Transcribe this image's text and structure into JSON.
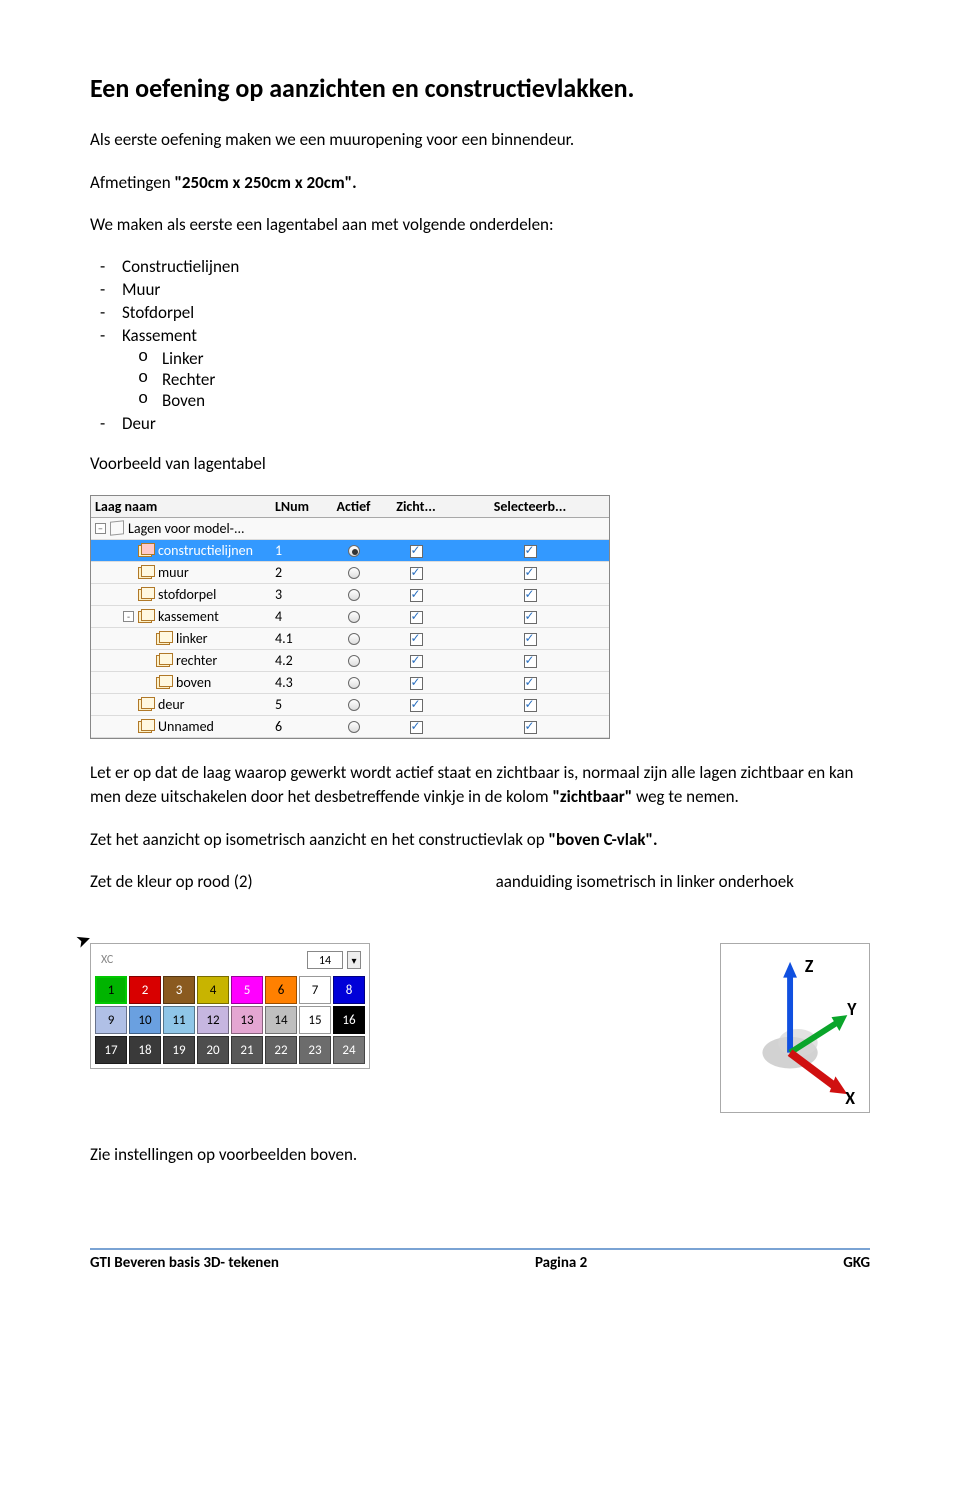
{
  "title": "Een oefening op aanzichten en constructievlakken.",
  "intro1": "Als eerste oefening maken we een muuropening voor een binnendeur.",
  "intro2_prefix": "Afmetingen ",
  "intro2_bold": "\"250cm x 250cm x 20cm\".",
  "onderdelen_heading": "We maken als eerste een lagentabel aan met volgende onderdelen:",
  "items": {
    "constructielijnen": "Constructielijnen",
    "muur": "Muur",
    "stofdorpel": "Stofdorpel",
    "kassement": "Kassement",
    "linker": "Linker",
    "rechter": "Rechter",
    "boven": "Boven",
    "deur": "Deur"
  },
  "voorbeeld_label": "Voorbeeld van lagentabel",
  "table": {
    "columns": {
      "naam": "Laag naam",
      "lnum": "LNum",
      "actief": "Actief",
      "zicht": "Zicht...",
      "sel": "Selecteerb..."
    },
    "root": "Lagen voor model-...",
    "rows": [
      {
        "name": "constructielijnen",
        "lnum": "1",
        "actief": true,
        "zicht": true,
        "sel": true,
        "selected": true,
        "indent": 1,
        "icon": "red"
      },
      {
        "name": "muur",
        "lnum": "2",
        "actief": false,
        "zicht": true,
        "sel": true,
        "indent": 1
      },
      {
        "name": "stofdorpel",
        "lnum": "3",
        "actief": false,
        "zicht": true,
        "sel": true,
        "indent": 1
      },
      {
        "name": "kassement",
        "lnum": "4",
        "actief": false,
        "zicht": true,
        "sel": true,
        "indent": 1,
        "expander": "-"
      },
      {
        "name": "linker",
        "lnum": "4.1",
        "actief": false,
        "zicht": true,
        "sel": true,
        "indent": 2
      },
      {
        "name": "rechter",
        "lnum": "4.2",
        "actief": false,
        "zicht": true,
        "sel": true,
        "indent": 2
      },
      {
        "name": "boven",
        "lnum": "4.3",
        "actief": false,
        "zicht": true,
        "sel": true,
        "indent": 2
      },
      {
        "name": "deur",
        "lnum": "5",
        "actief": false,
        "zicht": true,
        "sel": true,
        "indent": 1
      },
      {
        "name": "Unnamed",
        "lnum": "6",
        "actief": false,
        "zicht": true,
        "sel": true,
        "indent": 1
      }
    ]
  },
  "para_layer_note_a": "Let er op dat de laag waarop gewerkt wordt actief staat en zichtbaar is, normaal zijn alle lagen zichtbaar en kan men deze uitschakelen door het desbetreffende vinkje in de kolom ",
  "para_layer_note_bold": "\"zichtbaar\"",
  "para_layer_note_b": " weg te nemen.",
  "para_iso_a": "Zet het aanzicht op isometrisch aanzicht en het constructievlak op ",
  "para_iso_bold": "\"boven C-vlak\".",
  "kleur_label": "Zet de kleur op rood (2)",
  "iso_hoek_label": "aanduiding isometrisch in linker onderhoek",
  "palette": {
    "current": "14",
    "xc": "XC",
    "swatches": [
      {
        "n": "1",
        "bg": "#00b400",
        "fg": "#000000",
        "sel": true
      },
      {
        "n": "2",
        "bg": "#d80000",
        "fg": "#ffffff"
      },
      {
        "n": "3",
        "bg": "#8a5a1f",
        "fg": "#ffffff"
      },
      {
        "n": "4",
        "bg": "#c8b400",
        "fg": "#000000"
      },
      {
        "n": "5",
        "bg": "#ff00ff",
        "fg": "#ffffff"
      },
      {
        "n": "6",
        "bg": "#ff8000",
        "fg": "#000000"
      },
      {
        "n": "7",
        "bg": "#ffffff",
        "fg": "#000000"
      },
      {
        "n": "8",
        "bg": "#0000d8",
        "fg": "#ffffff"
      },
      {
        "n": "9",
        "bg": "#b0c0e6",
        "fg": "#000000"
      },
      {
        "n": "10",
        "bg": "#6aa0e0",
        "fg": "#000000"
      },
      {
        "n": "11",
        "bg": "#8fc6e8",
        "fg": "#000000"
      },
      {
        "n": "12",
        "bg": "#c6b6e0",
        "fg": "#000000"
      },
      {
        "n": "13",
        "bg": "#e4a6d2",
        "fg": "#000000"
      },
      {
        "n": "14",
        "bg": "#bfbfbf",
        "fg": "#000000"
      },
      {
        "n": "15",
        "bg": "#ffffff",
        "fg": "#000000"
      },
      {
        "n": "16",
        "bg": "#000000",
        "fg": "#ffffff"
      },
      {
        "n": "17",
        "bg": "#303030",
        "fg": "#ffffff"
      },
      {
        "n": "18",
        "bg": "#3a3a3a",
        "fg": "#ffffff"
      },
      {
        "n": "19",
        "bg": "#444444",
        "fg": "#ffffff"
      },
      {
        "n": "20",
        "bg": "#4e4e4e",
        "fg": "#ffffff"
      },
      {
        "n": "21",
        "bg": "#585858",
        "fg": "#ffffff"
      },
      {
        "n": "22",
        "bg": "#626262",
        "fg": "#ffffff"
      },
      {
        "n": "23",
        "bg": "#6c6c6c",
        "fg": "#ffffff"
      },
      {
        "n": "24",
        "bg": "#767676",
        "fg": "#ffffff"
      }
    ]
  },
  "axis": {
    "z": "Z",
    "y": "Y",
    "x": "X"
  },
  "zie_instellingen": "Zie instellingen op voorbeelden boven.",
  "footer": {
    "left": "GTI Beveren  basis 3D- tekenen",
    "mid": "Pagina 2",
    "right": "GKG"
  }
}
